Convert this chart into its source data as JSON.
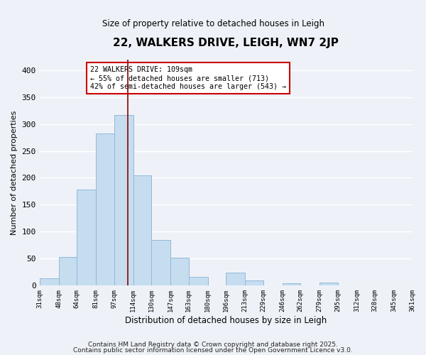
{
  "title": "22, WALKERS DRIVE, LEIGH, WN7 2JP",
  "subtitle": "Size of property relative to detached houses in Leigh",
  "xlabel": "Distribution of detached houses by size in Leigh",
  "ylabel": "Number of detached properties",
  "bar_color": "#c6ddf0",
  "bar_edge_color": "#90b8d8",
  "bg_color": "#eef2f8",
  "grid_color": "#ffffff",
  "bins": [
    31,
    48,
    64,
    81,
    97,
    114,
    130,
    147,
    163,
    180,
    196,
    213,
    229,
    246,
    262,
    279,
    295,
    312,
    328,
    345,
    361
  ],
  "counts": [
    13,
    53,
    178,
    283,
    317,
    204,
    84,
    51,
    16,
    0,
    24,
    9,
    0,
    4,
    0,
    5,
    0,
    0,
    0,
    0
  ],
  "tick_labels": [
    "31sqm",
    "48sqm",
    "64sqm",
    "81sqm",
    "97sqm",
    "114sqm",
    "130sqm",
    "147sqm",
    "163sqm",
    "180sqm",
    "196sqm",
    "213sqm",
    "229sqm",
    "246sqm",
    "262sqm",
    "279sqm",
    "295sqm",
    "312sqm",
    "328sqm",
    "345sqm",
    "361sqm"
  ],
  "vline_x": 109,
  "vline_color": "#8b0000",
  "annotation_text": "22 WALKERS DRIVE: 109sqm\n← 55% of detached houses are smaller (713)\n42% of semi-detached houses are larger (543) →",
  "annotation_box_color": "#ffffff",
  "annotation_box_edge": "#cc0000",
  "ylim": [
    0,
    420
  ],
  "yticks": [
    0,
    50,
    100,
    150,
    200,
    250,
    300,
    350,
    400
  ],
  "footer1": "Contains HM Land Registry data © Crown copyright and database right 2025.",
  "footer2": "Contains public sector information licensed under the Open Government Licence v3.0."
}
